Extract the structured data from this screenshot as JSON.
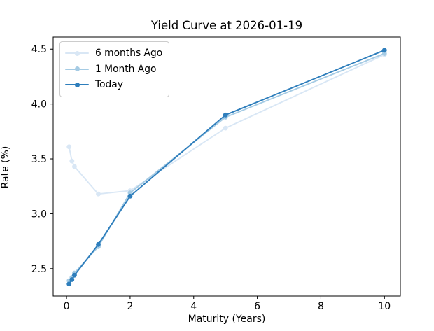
{
  "chart": {
    "title": "Yield Curve at 2026-01-19",
    "xlabel": "Maturity (Years)",
    "ylabel": "Rate (%)"
  },
  "chart_data": {
    "type": "line",
    "title": "Yield Curve at 2026-01-19",
    "xlabel": "Maturity (Years)",
    "ylabel": "Rate (%)",
    "x": [
      0.08,
      0.17,
      0.25,
      1,
      2,
      5,
      10
    ],
    "series": [
      {
        "name": "6 months Ago",
        "color": "#d9e7f5",
        "values": [
          3.61,
          3.48,
          3.43,
          3.18,
          3.21,
          3.78,
          4.45
        ]
      },
      {
        "name": "1 Month Ago",
        "color": "#a5cbe4",
        "values": [
          2.39,
          2.42,
          2.46,
          2.7,
          3.19,
          3.88,
          4.46
        ]
      },
      {
        "name": "Today",
        "color": "#2e7ebc",
        "values": [
          2.36,
          2.4,
          2.44,
          2.72,
          3.16,
          3.9,
          4.49
        ]
      }
    ],
    "x_ticks": [
      0,
      2,
      4,
      6,
      8,
      10
    ],
    "x_tick_labels": [
      "0",
      "2",
      "4",
      "6",
      "8",
      "10"
    ],
    "y_ticks": [
      2.5,
      3.0,
      3.5,
      4.0,
      4.5
    ],
    "y_tick_labels": [
      "2.5",
      "3.0",
      "3.5",
      "4.0",
      "4.5"
    ],
    "xlim": [
      -0.42,
      10.5
    ],
    "ylim": [
      2.25,
      4.61
    ],
    "grid": false,
    "legend_position": "upper left",
    "marker": "circle",
    "spine_color": "#000000",
    "background_color": "#ffffff"
  }
}
